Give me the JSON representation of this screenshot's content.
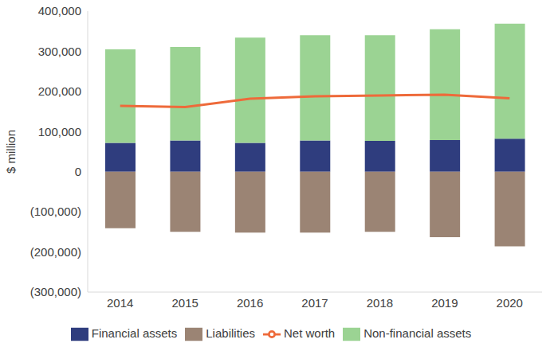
{
  "chart_data": {
    "type": "bar",
    "stacked": true,
    "grid": false,
    "legend": "bottom",
    "y_label": "$ million",
    "categories": [
      "2014",
      "2015",
      "2016",
      "2017",
      "2018",
      "2019",
      "2020"
    ],
    "series": [
      {
        "name": "Financial assets",
        "type": "bar",
        "color": "#2f3d7e",
        "values": [
          72000,
          78000,
          72000,
          78000,
          77000,
          79000,
          82000
        ]
      },
      {
        "name": "Non-financial assets",
        "type": "bar",
        "color": "#9bd393",
        "values": [
          233000,
          233000,
          262000,
          262000,
          263000,
          276000,
          287000
        ]
      },
      {
        "name": "Liabilities",
        "type": "bar",
        "color": "#9b8474",
        "values": [
          -141000,
          -150000,
          -152000,
          -152000,
          -150000,
          -163000,
          -186000
        ]
      },
      {
        "name": "Net worth",
        "type": "line",
        "color": "#ee6a3a",
        "values": [
          164000,
          161000,
          182000,
          188000,
          190000,
          192000,
          183000
        ]
      }
    ],
    "ylim": [
      -300000,
      400000
    ],
    "yticks": [
      {
        "value": -300000,
        "label": "(300,000)"
      },
      {
        "value": -200000,
        "label": "(200,000)"
      },
      {
        "value": -100000,
        "label": "(100,000)"
      },
      0,
      {
        "value": 100000,
        "label": "100,000"
      },
      {
        "value": 200000,
        "label": "200,000"
      },
      {
        "value": 300000,
        "label": "300,000"
      },
      {
        "value": 400000,
        "label": "400,000"
      }
    ]
  }
}
